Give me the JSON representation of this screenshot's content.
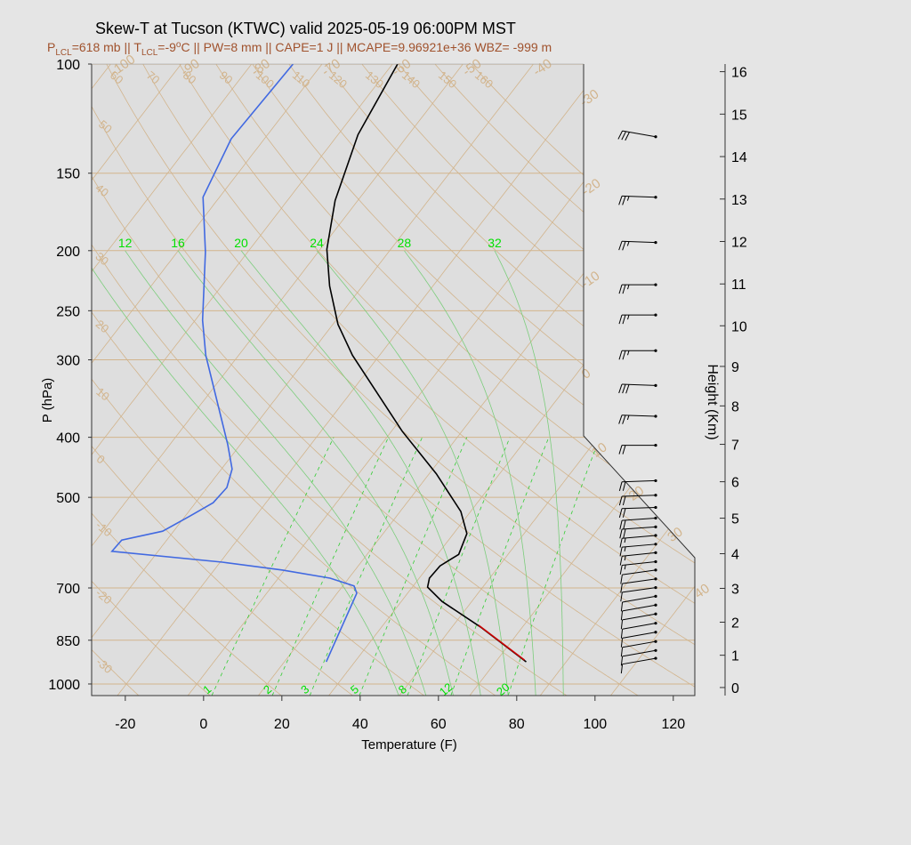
{
  "chart_data": {
    "type": "skewt",
    "title": "Skew-T at Tucson (KTWC) valid 2025-05-19 06:00PM MST",
    "subtitle_parts": [
      "P",
      "LCL",
      "=618 mb || T",
      "LCL",
      "=-9",
      "o",
      "C || PW=8 mm || CAPE=1 J || MCAPE=9.96921e+36 WBZ= -999 m"
    ],
    "xlabel": "Temperature (F)",
    "ylabel": "P (hPa)",
    "y2label": "Height (Km)",
    "xlim": [
      -28.6,
      125.5
    ],
    "xticks": [
      -20,
      0,
      20,
      40,
      60,
      80,
      100,
      120
    ],
    "ylim": [
      1044,
      100
    ],
    "yticks": [
      100,
      150,
      200,
      250,
      300,
      400,
      500,
      700,
      850,
      1000
    ],
    "log_y": true,
    "y2ticks": [
      0,
      1,
      2,
      3,
      4,
      5,
      6,
      7,
      8,
      9,
      10,
      11,
      12,
      13,
      14,
      15,
      16
    ],
    "series": [
      {
        "color": "#000000",
        "pressure": [
          921,
          809,
          736,
          698,
          675,
          645,
          618,
          572,
          527,
          458,
          391,
          295,
          263,
          228,
          199,
          166,
          130,
          100
        ],
        "values": [
          75.8,
          57.2,
          42.4,
          35.9,
          34.6,
          34.9,
          37.4,
          35.4,
          29.5,
          15.8,
          -1.3,
          -28.9,
          -38.7,
          -48.4,
          -56.3,
          -63.8,
          -70.9,
          -74.7
        ]
      },
      {
        "color": "#4169e1",
        "pressure": [
          921,
          714,
          695,
          675,
          655,
          636,
          611,
          586,
          567,
          536,
          510,
          482,
          450,
          411,
          295,
          259,
          201,
          164,
          132,
          100
        ],
        "values": [
          24.7,
          19.0,
          16.9,
          9.2,
          -4.5,
          -21.5,
          -51.8,
          -51.5,
          -42.8,
          -38.8,
          -35.5,
          -35.0,
          -37.3,
          -43.2,
          -66.4,
          -74.1,
          -86.8,
          -98.2,
          -102.5,
          -101.4
        ]
      },
      {
        "color": "#cc0000",
        "pressure": [
          915,
          804
        ],
        "values": [
          75.0,
          56.4
        ]
      }
    ],
    "dry_adiabats_c": [
      -30,
      -20,
      -10,
      0,
      10,
      20,
      30,
      40,
      50,
      60,
      70,
      80,
      90,
      100,
      110,
      120,
      130,
      140,
      150,
      160
    ],
    "isotherms_c": [
      -100,
      -90,
      -80,
      -70,
      -60,
      -50,
      -40,
      -30,
      -20,
      -10,
      0,
      10,
      20,
      30,
      40
    ],
    "mixing_ratios": [
      1,
      2,
      3,
      5,
      8,
      12,
      20
    ],
    "moist_adiabats_c": [
      8,
      12,
      16,
      20,
      24,
      28,
      32
    ],
    "wind_pressure": [
      131,
      164,
      194,
      227,
      254,
      290,
      330,
      370,
      412,
      470,
      496,
      519,
      540,
      558,
      576,
      595,
      614,
      635,
      655,
      677,
      699,
      722,
      746,
      771,
      798,
      825,
      854,
      883,
      909
    ],
    "wind_speed": [
      30,
      25,
      25,
      25,
      25,
      25,
      30,
      25,
      20,
      20,
      20,
      20,
      20,
      20,
      15,
      15,
      15,
      15,
      10,
      10,
      10,
      10,
      10,
      10,
      10,
      10,
      10,
      10,
      10
    ],
    "wind_direction": [
      280,
      272,
      272,
      270,
      270,
      270,
      272,
      272,
      270,
      268,
      268,
      268,
      266,
      266,
      265,
      265,
      264,
      264,
      262,
      262,
      262,
      260,
      260,
      260,
      260,
      260,
      260,
      260,
      260
    ]
  }
}
